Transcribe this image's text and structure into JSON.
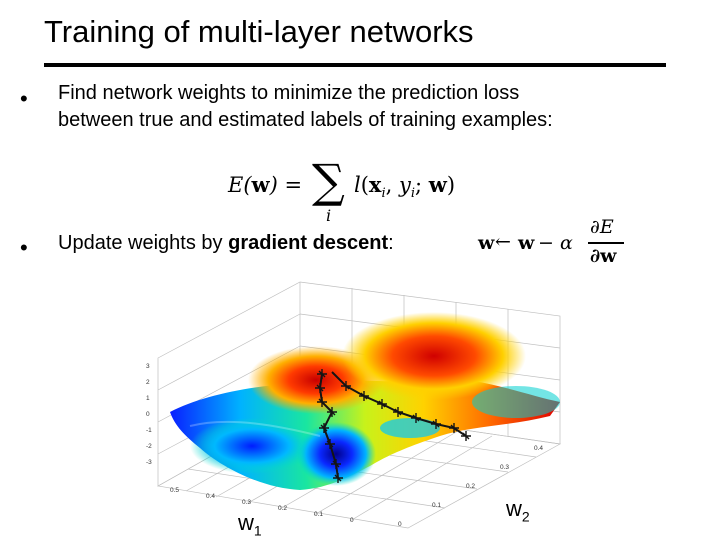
{
  "slide": {
    "title": "Training of multi-layer networks",
    "bullet_symbol": "•",
    "bullet1": {
      "line1": "Find network weights to minimize the prediction loss",
      "line2": "between true and estimated labels of training examples:"
    },
    "equation_loss": {
      "lhs": "E(w) =",
      "sum": "∑",
      "sum_index": "i",
      "rhs": "l(xi, yi; w)"
    },
    "bullet2": {
      "prefix": "Update weights by ",
      "emphasis": "gradient descent",
      "suffix": ":"
    },
    "update_rule": {
      "w": "w",
      "arrow": "←",
      "rhs_w": "w",
      "minus_alpha": "− α",
      "numerator": "∂E",
      "denominator": "∂w"
    },
    "figure": {
      "axis_w1": "w",
      "axis_w1_sub": "1",
      "axis_w2": "w",
      "axis_w2_sub": "2",
      "z_ticks": [
        "3",
        "2",
        "1",
        "0",
        "-1",
        "-2",
        "-3"
      ],
      "w1_ticks": [
        "0.5",
        "0.4",
        "0.3",
        "0.2",
        "0.1",
        "0"
      ],
      "w2_ticks": [
        "0",
        "0.1",
        "0.2",
        "0.3",
        "0.4"
      ],
      "path_colors": {
        "main": "#1a1a1a"
      }
    }
  }
}
